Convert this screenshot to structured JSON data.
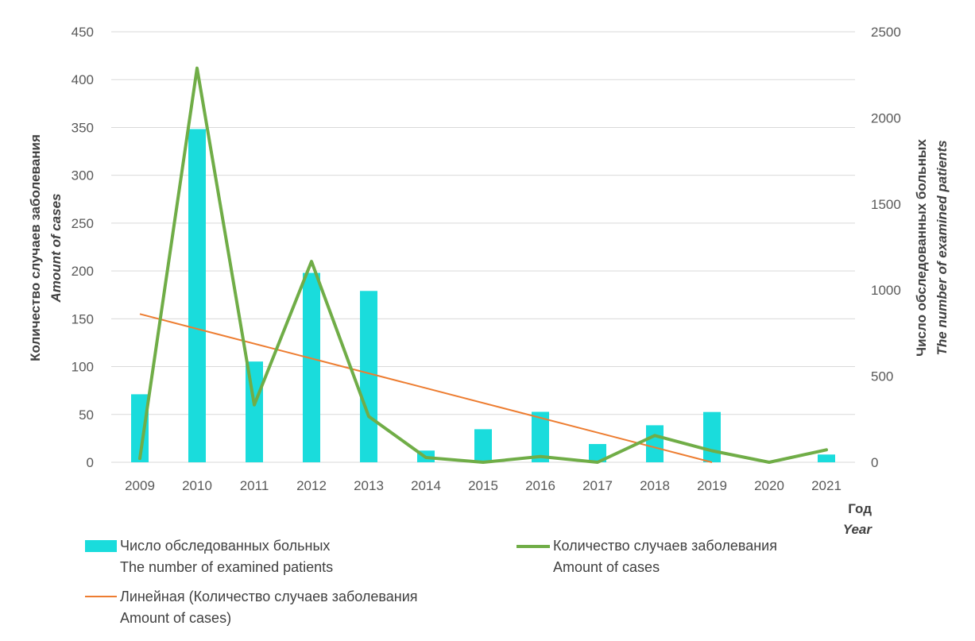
{
  "chart_data": {
    "type": "bar+line",
    "categories": [
      "2009",
      "2010",
      "2011",
      "2012",
      "2013",
      "2014",
      "2015",
      "2016",
      "2017",
      "2018",
      "2019",
      "2020",
      "2021"
    ],
    "series": [
      {
        "name": "Число обследованных больных",
        "name_en": "The number of examined patients",
        "type": "bar",
        "axis": "right",
        "color": "#1ADCDC",
        "values": [
          395,
          1935,
          585,
          1100,
          995,
          68,
          192,
          293,
          106,
          215,
          292,
          0,
          45
        ]
      },
      {
        "name": "Количество случаев заболевания",
        "name_en": "Amount of cases",
        "type": "line",
        "axis": "left",
        "color": "#70AD47",
        "values": [
          4,
          412,
          60,
          210,
          48,
          5,
          0,
          6,
          0,
          28,
          12,
          0,
          13
        ]
      },
      {
        "name": "Линейная (Количество случаев заболевания",
        "name_en": "Amount of cases)",
        "type": "trendline",
        "axis": "left",
        "color": "#ED7D31",
        "x_start": "2009",
        "y_start": 155,
        "x_end": "2019",
        "y_end": 0
      }
    ],
    "left_axis": {
      "title": "Количество случаев заболевания",
      "title_en": "Amount of cases",
      "ylim": [
        0,
        450
      ],
      "ticks": [
        "0",
        "50",
        "100",
        "150",
        "200",
        "250",
        "300",
        "350",
        "400",
        "450"
      ]
    },
    "right_axis": {
      "title": "Число обследованных больных",
      "title_en": "The number of examined patients",
      "ylim": [
        0,
        2500
      ],
      "ticks": [
        "0",
        "500",
        "1000",
        "1500",
        "2000",
        "2500"
      ]
    },
    "x_axis": {
      "title": "Год",
      "title_en": "Year"
    },
    "grid": true,
    "legend_position": "bottom"
  }
}
